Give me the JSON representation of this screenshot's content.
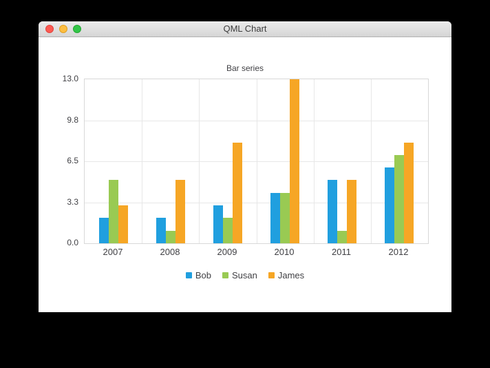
{
  "window": {
    "title": "QML Chart",
    "buttons": {
      "close": "close",
      "minimize": "minimize",
      "zoom": "zoom"
    }
  },
  "chart_data": {
    "type": "bar",
    "title": "Bar series",
    "categories": [
      "2007",
      "2008",
      "2009",
      "2010",
      "2011",
      "2012"
    ],
    "series": [
      {
        "name": "Bob",
        "color": "#209fdf",
        "values": [
          2,
          2,
          3,
          4,
          5,
          6
        ]
      },
      {
        "name": "Susan",
        "color": "#99ca53",
        "values": [
          5,
          1,
          2,
          4,
          1,
          7
        ]
      },
      {
        "name": "James",
        "color": "#f6a625",
        "values": [
          3,
          5,
          8,
          13,
          5,
          8
        ]
      }
    ],
    "y_ticks": [
      "13.0",
      "9.8",
      "6.5",
      "3.3",
      "0.0"
    ],
    "ylim": [
      0,
      13
    ],
    "xlabel": "",
    "ylabel": "",
    "grid": true,
    "legend_position": "bottom"
  },
  "colors": {
    "traffic_red": "#fc5a52",
    "traffic_yellow": "#fdbe41",
    "traffic_green": "#33c649",
    "grid": "#e7e7e7",
    "plot_border": "#d8d8d8",
    "label_text": "#404044",
    "desktop_background": "#000000",
    "window_background": "#ffffff"
  }
}
